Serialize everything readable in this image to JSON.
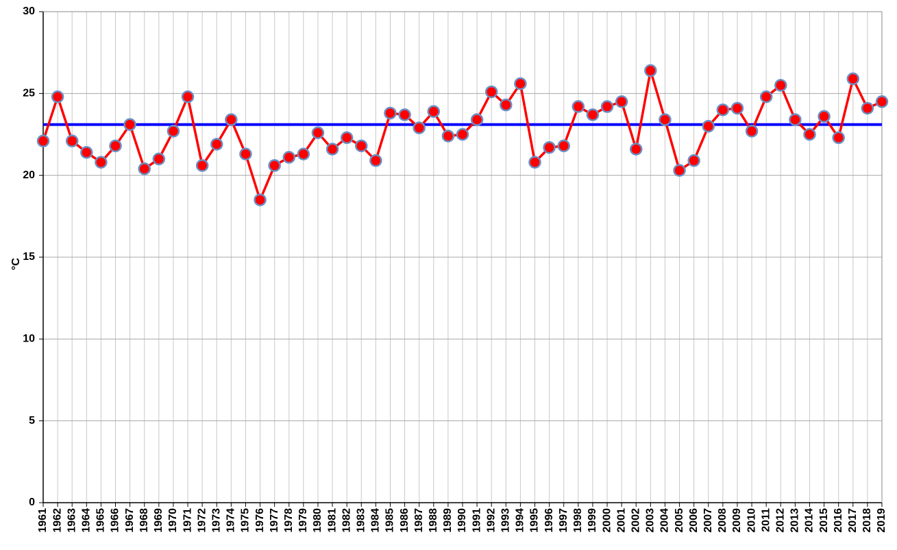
{
  "chart_data": {
    "type": "line",
    "y_label": "°C",
    "categories": [
      "1961",
      "1962",
      "1963",
      "1964",
      "1965",
      "1966",
      "1967",
      "1968",
      "1969",
      "1970",
      "1971",
      "1972",
      "1973",
      "1974",
      "1975",
      "1976",
      "1977",
      "1978",
      "1979",
      "1980",
      "1981",
      "1982",
      "1983",
      "1984",
      "1985",
      "1986",
      "1987",
      "1988",
      "1989",
      "1990",
      "1991",
      "1992",
      "1993",
      "1994",
      "1995",
      "1996",
      "1997",
      "1998",
      "1999",
      "2000",
      "2001",
      "2002",
      "2003",
      "2004",
      "2005",
      "2006",
      "2007",
      "2008",
      "2009",
      "2010",
      "2011",
      "2012",
      "2013",
      "2014",
      "2015",
      "2016",
      "2017",
      "2018",
      "2019"
    ],
    "values": [
      22.1,
      24.8,
      22.1,
      21.4,
      20.8,
      21.8,
      23.1,
      20.4,
      21.0,
      22.7,
      24.8,
      20.6,
      21.9,
      23.4,
      21.3,
      18.5,
      20.6,
      21.1,
      21.3,
      22.6,
      21.6,
      22.3,
      21.8,
      20.9,
      23.8,
      23.7,
      22.9,
      23.9,
      22.4,
      22.5,
      23.4,
      25.1,
      24.3,
      25.6,
      20.8,
      21.7,
      21.8,
      24.2,
      23.7,
      24.2,
      24.5,
      21.6,
      26.4,
      23.4,
      20.3,
      20.9,
      23.0,
      24.0,
      24.1,
      22.7,
      24.8,
      25.5,
      23.4,
      22.5,
      23.6,
      22.3,
      25.9,
      24.1,
      24.5
    ],
    "color": "#ff0000",
    "marker_edge_color": "#6a8fc4",
    "reference_line": {
      "value": 23.1,
      "color": "#0000ff"
    },
    "ylim": [
      0,
      30
    ],
    "yticks": [
      0,
      5,
      10,
      15,
      20,
      25,
      30
    ],
    "grid": true
  }
}
